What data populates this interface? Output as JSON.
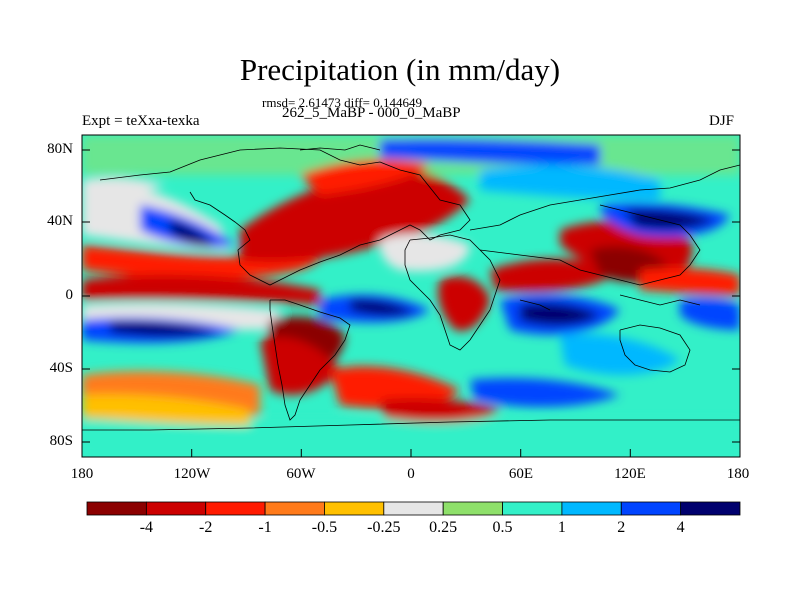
{
  "title": "Precipitation (in mm/day)",
  "stats": "rmsd= 2.61473 diff= 0.144649",
  "subtitle": "262_5_MaBP - 000_0_MaBP",
  "left_label": "Expt = teXxa-texka",
  "right_label": "DJF",
  "y_ticks": [
    "80N",
    "40N",
    "0",
    "40S",
    "80S"
  ],
  "x_ticks": [
    "180",
    "120W",
    "60W",
    "0",
    "60E",
    "120E",
    "180"
  ],
  "colorbar": {
    "labels": [
      "-4",
      "-2",
      "-1",
      "-0.5",
      "-0.25",
      "0.25",
      "0.5",
      "1",
      "2",
      "4"
    ],
    "colors": [
      "#8b0000",
      "#cc0000",
      "#ff1a00",
      "#ff7a1a",
      "#ffc000",
      "#e6e6e6",
      "#8ee06a",
      "#33f0c8",
      "#00b8ff",
      "#0044ff",
      "#00006e"
    ]
  }
}
